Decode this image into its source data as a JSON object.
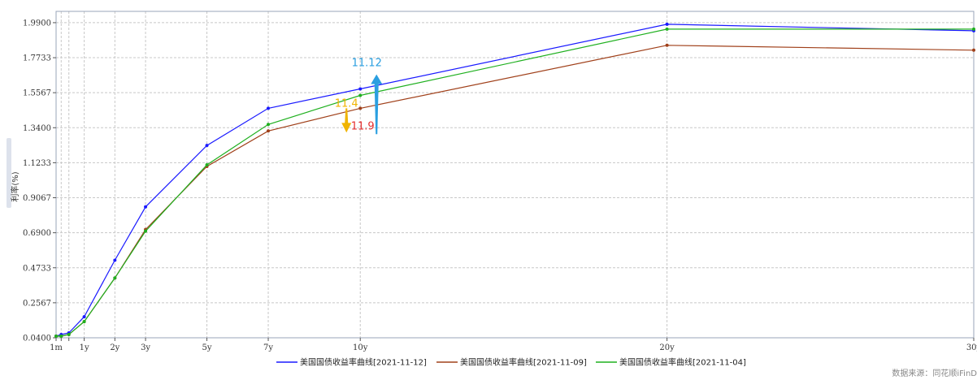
{
  "chart_data": {
    "type": "line",
    "ylabel": "利率(%)",
    "y_ticks": [
      "1.9900",
      "1.7733",
      "1.5567",
      "1.3400",
      "1.1233",
      "0.9067",
      "0.6900",
      "0.4733",
      "0.2567",
      "0.0400"
    ],
    "y_tick_values": [
      1.99,
      1.7733,
      1.5567,
      1.34,
      1.1233,
      0.9067,
      0.69,
      0.4733,
      0.2567,
      0.04
    ],
    "ylim": [
      0.04,
      2.06
    ],
    "x_ticks": [
      "1m",
      "1y",
      "2y",
      "3y",
      "5y",
      "7y",
      "10y",
      "20y",
      "30y"
    ],
    "x_tick_values": [
      0.0833,
      1,
      2,
      3,
      5,
      7,
      10,
      20,
      30
    ],
    "x": [
      0.0833,
      0.25,
      0.5,
      1,
      2,
      3,
      5,
      7,
      10,
      20,
      30
    ],
    "xlim": [
      0.0833,
      30
    ],
    "grid": true,
    "legend_position": "bottom",
    "series": [
      {
        "name": "美国国债收益率曲线[2021-11-12]",
        "color": "#1a1aff",
        "values": [
          0.05,
          0.06,
          0.07,
          0.17,
          0.52,
          0.85,
          1.23,
          1.46,
          1.58,
          1.98,
          1.94
        ]
      },
      {
        "name": "美国国债收益率曲线[2021-11-09]",
        "color": "#a0401a",
        "values": [
          0.05,
          0.05,
          0.06,
          0.14,
          0.41,
          0.71,
          1.1,
          1.32,
          1.46,
          1.85,
          1.82
        ]
      },
      {
        "name": "美国国债收益率曲线[2021-11-04]",
        "color": "#1fb01f",
        "values": [
          0.05,
          0.05,
          0.06,
          0.14,
          0.41,
          0.7,
          1.11,
          1.36,
          1.54,
          1.95,
          1.95
        ]
      }
    ],
    "annotations": [
      {
        "text": "11.12",
        "color": "#2a9fe0",
        "direction": "up"
      },
      {
        "text": "11.4",
        "color": "#f0b400",
        "direction": "down"
      },
      {
        "text": "11.9",
        "color": "#e53030",
        "direction": "none"
      }
    ]
  },
  "source_text": "数据来源：同花顺iFinD"
}
